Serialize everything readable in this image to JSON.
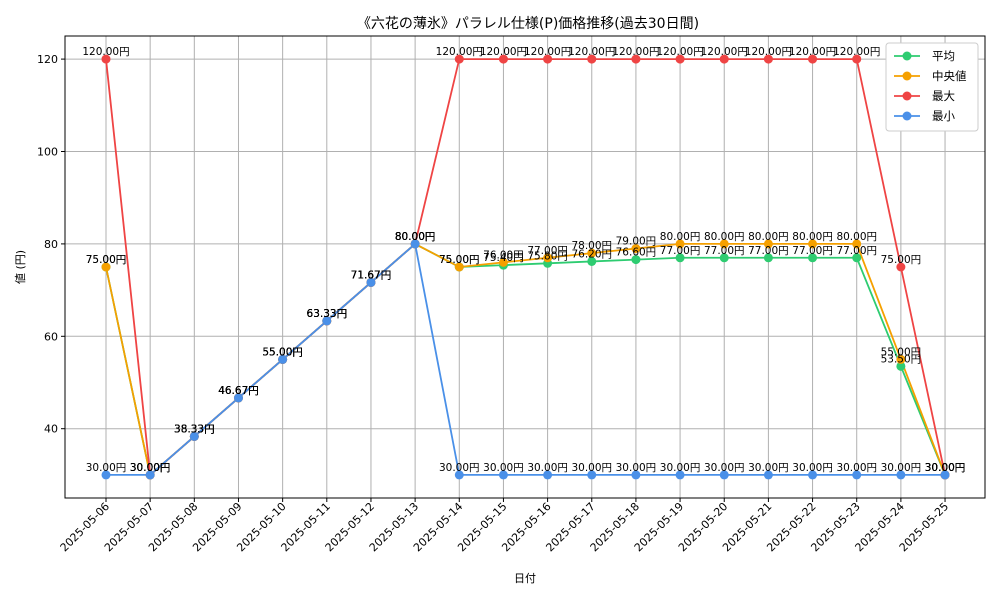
{
  "chart_data": {
    "type": "line",
    "title": "《六花の薄氷》パラレル仕様(P)価格推移(過去30日間)",
    "xlabel": "日付",
    "ylabel": "値 (円)",
    "ylim": [
      25,
      125
    ],
    "yticks": [
      40,
      60,
      80,
      100,
      120
    ],
    "grid": true,
    "legend_position": "top-right",
    "label_suffix": "円",
    "categories": [
      "2025-05-06",
      "2025-05-07",
      "2025-05-08",
      "2025-05-09",
      "2025-05-10",
      "2025-05-11",
      "2025-05-12",
      "2025-05-13",
      "2025-05-14",
      "2025-05-15",
      "2025-05-16",
      "2025-05-17",
      "2025-05-18",
      "2025-05-19",
      "2025-05-20",
      "2025-05-21",
      "2025-05-22",
      "2025-05-23",
      "2025-05-24",
      "2025-05-25"
    ],
    "series": [
      {
        "name": "平均",
        "color": "#2ecc71",
        "values": [
          75.0,
          30.0,
          38.33,
          46.67,
          55.0,
          63.33,
          71.67,
          80.0,
          75.0,
          75.4,
          75.8,
          76.2,
          76.6,
          77.0,
          77.0,
          77.0,
          77.0,
          77.0,
          53.5,
          30.0
        ]
      },
      {
        "name": "中央値",
        "color": "#f5a000",
        "values": [
          75.0,
          30.0,
          38.33,
          46.67,
          55.0,
          63.33,
          71.67,
          80.0,
          75.0,
          76.0,
          77.0,
          78.0,
          79.0,
          80.0,
          80.0,
          80.0,
          80.0,
          80.0,
          55.0,
          30.0
        ]
      },
      {
        "name": "最大",
        "color": "#ef4444",
        "values": [
          120.0,
          30.0,
          38.33,
          46.67,
          55.0,
          63.33,
          71.67,
          80.0,
          120.0,
          120.0,
          120.0,
          120.0,
          120.0,
          120.0,
          120.0,
          120.0,
          120.0,
          120.0,
          75.0,
          30.0
        ]
      },
      {
        "name": "最小",
        "color": "#4a90e8",
        "values": [
          30.0,
          30.0,
          38.33,
          46.67,
          55.0,
          63.33,
          71.67,
          80.0,
          30.0,
          30.0,
          30.0,
          30.0,
          30.0,
          30.0,
          30.0,
          30.0,
          30.0,
          30.0,
          30.0,
          30.0
        ]
      }
    ]
  }
}
